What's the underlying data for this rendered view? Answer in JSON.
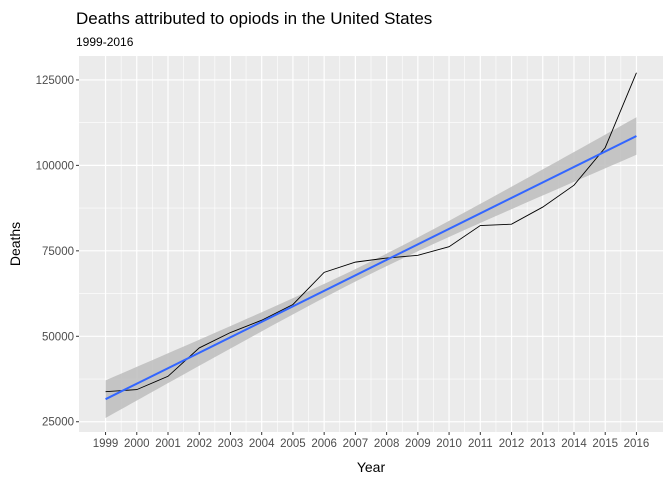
{
  "chart_data": {
    "type": "line",
    "title": "Deaths attributed to opiods in the United States",
    "subtitle": "1999-2016",
    "xlabel": "Year",
    "ylabel": "Deaths",
    "x": [
      1999,
      2000,
      2001,
      2002,
      2003,
      2004,
      2005,
      2006,
      2007,
      2008,
      2009,
      2010,
      2011,
      2012,
      2013,
      2014,
      2015,
      2016
    ],
    "x_ticks": [
      "1999",
      "2000",
      "2001",
      "2002",
      "2003",
      "2004",
      "2005",
      "2006",
      "2007",
      "2008",
      "2009",
      "2010",
      "2011",
      "2012",
      "2013",
      "2014",
      "2015",
      "2016"
    ],
    "y_ticks": [
      25000,
      50000,
      75000,
      100000,
      125000
    ],
    "y_tick_labels": [
      "25000",
      "50000",
      "75000",
      "100000",
      "125000"
    ],
    "xlim": [
      1998.15,
      2016.85
    ],
    "ylim": [
      22000,
      132000
    ],
    "series": [
      {
        "values": [
          33800,
          34400,
          38300,
          46600,
          51100,
          54700,
          59300,
          68700,
          71700,
          72900,
          73700,
          76200,
          82400,
          82800,
          87800,
          94200,
          105200,
          127100
        ],
        "color": "#000000"
      }
    ],
    "trend": {
      "method": "linear fit with confidence band",
      "start": [
        1999,
        31600
      ],
      "end": [
        2016,
        108600
      ],
      "ci_halfwidth_ends": 5500,
      "ci_halfwidth_center": 1800,
      "color": "#3366ff",
      "band_color": "#bdbdbd"
    },
    "grid": true,
    "panel_background": "#ebebeb",
    "grid_color": "#ffffff"
  }
}
